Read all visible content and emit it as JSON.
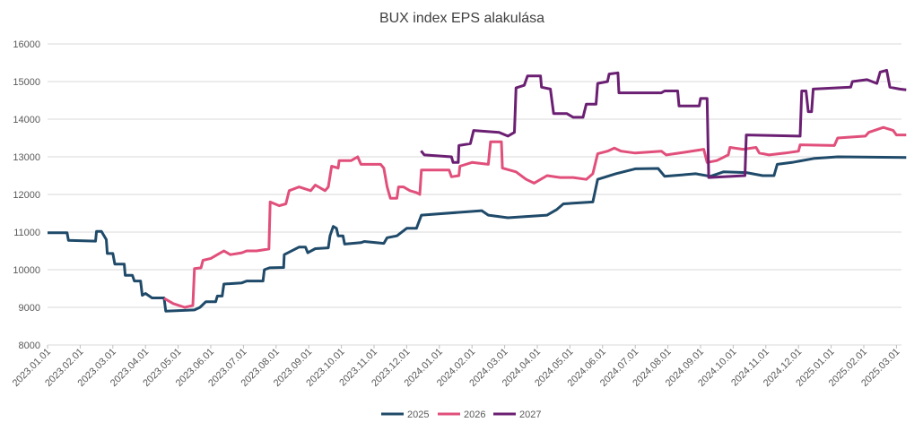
{
  "chart_data": {
    "type": "line",
    "title": "BUX index EPS alakulása",
    "xlabel": "",
    "ylabel": "",
    "ylim": [
      8000,
      16000
    ],
    "yticks": [
      "8000",
      "9000",
      "10000",
      "11000",
      "12000",
      "13000",
      "14000",
      "15000",
      "16000"
    ],
    "grid": true,
    "legend_position": "bottom",
    "x_unit": "months since 2023.01.01",
    "xticks": [
      "2023.01.01",
      "2023.02.01",
      "2023.03.01",
      "2023.04.01",
      "2023.05.01",
      "2023.06.01",
      "2023.07.01",
      "2023.08.01",
      "2023.09.01",
      "2023.10.01",
      "2023.11.01",
      "2023.12.01",
      "2024.01.01",
      "2024.02.01",
      "2024.03.01",
      "2024.04.01",
      "2024.05.01",
      "2024.06.01",
      "2024.07.01",
      "2024.08.01",
      "2024.09.01",
      "2024.10.01",
      "2024.11.01",
      "2024.12.01",
      "2025.01.01",
      "2025.02.01",
      "2025.03.01"
    ],
    "series": [
      {
        "name": "2025",
        "color": "#1f4a69",
        "points": [
          [
            0,
            10980
          ],
          [
            0.6,
            10980
          ],
          [
            0.64,
            10780
          ],
          [
            1.47,
            10760
          ],
          [
            1.5,
            11020
          ],
          [
            1.65,
            11020
          ],
          [
            1.8,
            10800
          ],
          [
            1.83,
            10430
          ],
          [
            2.0,
            10430
          ],
          [
            2.06,
            10150
          ],
          [
            2.35,
            10150
          ],
          [
            2.38,
            9850
          ],
          [
            2.6,
            9850
          ],
          [
            2.66,
            9700
          ],
          [
            2.85,
            9700
          ],
          [
            2.9,
            9320
          ],
          [
            3.0,
            9370
          ],
          [
            3.2,
            9250
          ],
          [
            3.57,
            9250
          ],
          [
            3.62,
            8900
          ],
          [
            4.5,
            8930
          ],
          [
            4.67,
            9000
          ],
          [
            4.85,
            9150
          ],
          [
            5.15,
            9150
          ],
          [
            5.2,
            9300
          ],
          [
            5.35,
            9300
          ],
          [
            5.4,
            9620
          ],
          [
            5.95,
            9650
          ],
          [
            6.1,
            9700
          ],
          [
            6.6,
            9700
          ],
          [
            6.64,
            10000
          ],
          [
            6.8,
            10050
          ],
          [
            7.23,
            10060
          ],
          [
            7.25,
            10400
          ],
          [
            7.7,
            10600
          ],
          [
            7.9,
            10600
          ],
          [
            7.97,
            10450
          ],
          [
            8.2,
            10560
          ],
          [
            8.6,
            10580
          ],
          [
            8.65,
            10900
          ],
          [
            8.75,
            11150
          ],
          [
            8.85,
            11100
          ],
          [
            8.9,
            10900
          ],
          [
            9.05,
            10900
          ],
          [
            9.1,
            10680
          ],
          [
            9.6,
            10720
          ],
          [
            9.7,
            10750
          ],
          [
            10.3,
            10700
          ],
          [
            10.4,
            10850
          ],
          [
            10.7,
            10900
          ],
          [
            11.0,
            11100
          ],
          [
            11.3,
            11100
          ],
          [
            11.45,
            11450
          ],
          [
            13.3,
            11570
          ],
          [
            13.5,
            11450
          ],
          [
            14.1,
            11380
          ],
          [
            15.3,
            11450
          ],
          [
            15.6,
            11600
          ],
          [
            15.8,
            11750
          ],
          [
            16.7,
            11800
          ],
          [
            16.85,
            12400
          ],
          [
            17.4,
            12550
          ],
          [
            18.0,
            12680
          ],
          [
            18.7,
            12690
          ],
          [
            18.9,
            12480
          ],
          [
            19.85,
            12550
          ],
          [
            20.3,
            12480
          ],
          [
            20.7,
            12600
          ],
          [
            21.4,
            12580
          ],
          [
            21.9,
            12500
          ],
          [
            22.25,
            12500
          ],
          [
            22.35,
            12800
          ],
          [
            22.8,
            12850
          ],
          [
            23.5,
            12960
          ],
          [
            24.2,
            13000
          ],
          [
            26.3,
            12980
          ]
        ]
      },
      {
        "name": "2026",
        "color": "#e14f7b",
        "points": [
          [
            3.57,
            9240
          ],
          [
            3.85,
            9100
          ],
          [
            4.2,
            9000
          ],
          [
            4.45,
            9050
          ],
          [
            4.5,
            10030
          ],
          [
            4.7,
            10050
          ],
          [
            4.76,
            10250
          ],
          [
            5.0,
            10300
          ],
          [
            5.2,
            10400
          ],
          [
            5.4,
            10500
          ],
          [
            5.6,
            10400
          ],
          [
            5.95,
            10450
          ],
          [
            6.1,
            10500
          ],
          [
            6.4,
            10500
          ],
          [
            6.78,
            10550
          ],
          [
            6.82,
            11800
          ],
          [
            7.1,
            11700
          ],
          [
            7.3,
            11750
          ],
          [
            7.4,
            12100
          ],
          [
            7.7,
            12200
          ],
          [
            8.06,
            12100
          ],
          [
            8.2,
            12250
          ],
          [
            8.5,
            12100
          ],
          [
            8.6,
            12200
          ],
          [
            8.7,
            12750
          ],
          [
            8.9,
            12700
          ],
          [
            8.93,
            12900
          ],
          [
            9.3,
            12900
          ],
          [
            9.5,
            13000
          ],
          [
            9.6,
            12800
          ],
          [
            10.2,
            12800
          ],
          [
            10.3,
            12700
          ],
          [
            10.4,
            12200
          ],
          [
            10.5,
            11900
          ],
          [
            10.7,
            11900
          ],
          [
            10.75,
            12200
          ],
          [
            10.9,
            12200
          ],
          [
            11.1,
            12100
          ],
          [
            11.3,
            12050
          ],
          [
            11.4,
            12000
          ],
          [
            11.45,
            12650
          ],
          [
            12.3,
            12650
          ],
          [
            12.37,
            12470
          ],
          [
            12.6,
            12500
          ],
          [
            12.63,
            12750
          ],
          [
            13.0,
            12850
          ],
          [
            13.5,
            12800
          ],
          [
            13.57,
            13400
          ],
          [
            13.9,
            13400
          ],
          [
            13.93,
            12700
          ],
          [
            14.35,
            12600
          ],
          [
            14.66,
            12400
          ],
          [
            14.9,
            12300
          ],
          [
            15.3,
            12500
          ],
          [
            15.7,
            12450
          ],
          [
            16.1,
            12450
          ],
          [
            16.5,
            12400
          ],
          [
            16.7,
            12550
          ],
          [
            16.85,
            13080
          ],
          [
            17.15,
            13150
          ],
          [
            17.36,
            13230
          ],
          [
            17.57,
            13150
          ],
          [
            18.0,
            13100
          ],
          [
            18.8,
            13150
          ],
          [
            18.95,
            13050
          ],
          [
            19.5,
            13120
          ],
          [
            20.1,
            13200
          ],
          [
            20.2,
            12850
          ],
          [
            20.5,
            12900
          ],
          [
            20.85,
            13050
          ],
          [
            20.9,
            13250
          ],
          [
            21.3,
            13200
          ],
          [
            21.7,
            13250
          ],
          [
            21.8,
            13100
          ],
          [
            22.1,
            13050
          ],
          [
            22.6,
            13100
          ],
          [
            23.0,
            13150
          ],
          [
            23.05,
            13320
          ],
          [
            24.1,
            13300
          ],
          [
            24.2,
            13500
          ],
          [
            25.05,
            13550
          ],
          [
            25.15,
            13650
          ],
          [
            25.6,
            13780
          ],
          [
            25.9,
            13700
          ],
          [
            26.0,
            13580
          ],
          [
            26.3,
            13580
          ]
        ]
      },
      {
        "name": "2027",
        "color": "#6b1f72",
        "points": [
          [
            11.44,
            13160
          ],
          [
            11.54,
            13050
          ],
          [
            12.37,
            13000
          ],
          [
            12.42,
            12850
          ],
          [
            12.58,
            12850
          ],
          [
            12.6,
            13300
          ],
          [
            12.95,
            13350
          ],
          [
            13.05,
            13700
          ],
          [
            13.83,
            13650
          ],
          [
            14.1,
            13550
          ],
          [
            14.3,
            13650
          ],
          [
            14.35,
            14830
          ],
          [
            14.6,
            14900
          ],
          [
            14.7,
            15150
          ],
          [
            15.1,
            15150
          ],
          [
            15.13,
            14850
          ],
          [
            15.4,
            14800
          ],
          [
            15.5,
            14150
          ],
          [
            15.9,
            14150
          ],
          [
            16.1,
            14050
          ],
          [
            16.4,
            14050
          ],
          [
            16.5,
            14400
          ],
          [
            16.8,
            14400
          ],
          [
            16.85,
            14950
          ],
          [
            17.15,
            15000
          ],
          [
            17.2,
            15200
          ],
          [
            17.47,
            15230
          ],
          [
            17.5,
            14700
          ],
          [
            18.8,
            14700
          ],
          [
            18.9,
            14750
          ],
          [
            19.3,
            14750
          ],
          [
            19.34,
            14350
          ],
          [
            19.96,
            14350
          ],
          [
            20.0,
            14550
          ],
          [
            20.2,
            14550
          ],
          [
            20.25,
            12450
          ],
          [
            21.36,
            12500
          ],
          [
            21.4,
            13580
          ],
          [
            23.05,
            13550
          ],
          [
            23.1,
            14750
          ],
          [
            23.23,
            14750
          ],
          [
            23.3,
            14200
          ],
          [
            23.4,
            14200
          ],
          [
            23.45,
            14800
          ],
          [
            24.6,
            14850
          ],
          [
            24.65,
            15000
          ],
          [
            25.1,
            15050
          ],
          [
            25.4,
            14950
          ],
          [
            25.5,
            15250
          ],
          [
            25.7,
            15300
          ],
          [
            25.8,
            14850
          ],
          [
            26.1,
            14800
          ],
          [
            26.3,
            14780
          ]
        ]
      }
    ]
  }
}
